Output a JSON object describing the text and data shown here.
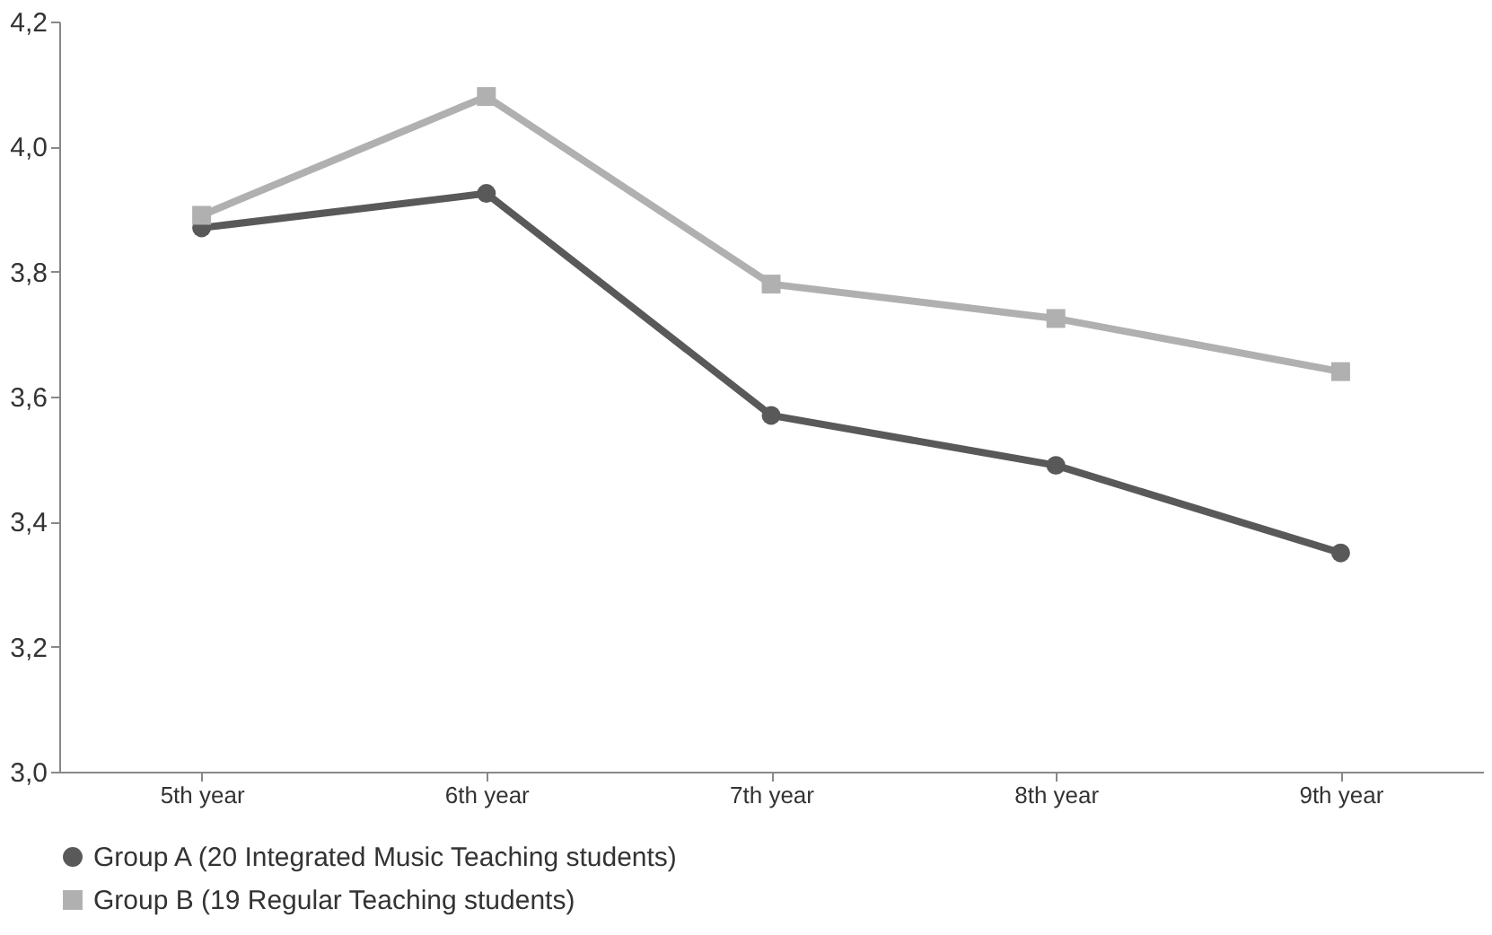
{
  "chart_data": {
    "type": "line",
    "categories": [
      "5th year",
      "6th year",
      "7th year",
      "8th year",
      "9th year"
    ],
    "series": [
      {
        "name": "Group A (20 Integrated Music Teaching students)",
        "color": "#595959",
        "marker": "circle",
        "values": [
          3.87,
          3.925,
          3.57,
          3.49,
          3.35
        ]
      },
      {
        "name": "Group B (19 Regular Teaching students)",
        "color": "#b0b0b0",
        "marker": "square",
        "values": [
          3.89,
          4.08,
          3.78,
          3.725,
          3.64
        ]
      }
    ],
    "ylim": [
      3.0,
      4.2
    ],
    "yticks": [
      {
        "value": 3.0,
        "label": "3,0"
      },
      {
        "value": 3.2,
        "label": "3,2"
      },
      {
        "value": 3.4,
        "label": "3,4"
      },
      {
        "value": 3.6,
        "label": "3,6"
      },
      {
        "value": 3.8,
        "label": "3,8"
      },
      {
        "value": 4.0,
        "label": "4,0"
      },
      {
        "value": 4.2,
        "label": "4,2"
      }
    ],
    "grid": false,
    "legend": "bottom",
    "line_style": "solid"
  }
}
